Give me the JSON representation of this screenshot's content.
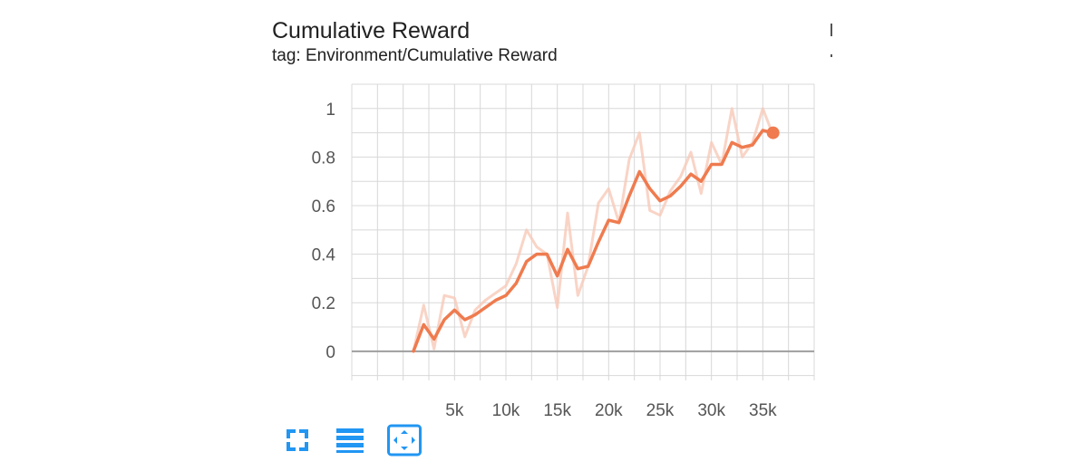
{
  "card": {
    "title": "Cumulative Reward",
    "subtitle": "tag: Environment/Cumulative Reward"
  },
  "toolbar": {
    "buttons": [
      {
        "icon": "expand-icon"
      },
      {
        "icon": "data-table-icon"
      },
      {
        "icon": "fit-domain-icon"
      }
    ]
  },
  "colors": {
    "smoothed": "#EF7B4F",
    "raw": "#F8C9B8",
    "grid": "#d8d8d8",
    "axis": "#9e9e9e",
    "accent": "#2196F3"
  },
  "chart_data": {
    "type": "line",
    "title": "Cumulative Reward",
    "xlabel": "",
    "ylabel": "",
    "xlim": [
      -5000,
      40000
    ],
    "ylim": [
      -0.12,
      1.1
    ],
    "xticks": [
      5000,
      10000,
      15000,
      20000,
      25000,
      30000,
      35000
    ],
    "xtick_labels": [
      "5k",
      "10k",
      "15k",
      "20k",
      "25k",
      "30k",
      "35k"
    ],
    "yticks": [
      0,
      0.2,
      0.4,
      0.6,
      0.8,
      1
    ],
    "ytick_labels": [
      "0",
      "0.2",
      "0.4",
      "0.6",
      "0.8",
      "1"
    ],
    "grid": true,
    "legend": "none",
    "series": [
      {
        "role": "raw",
        "x": [
          1000,
          2000,
          3000,
          4000,
          5000,
          6000,
          7000,
          8000,
          9000,
          10000,
          11000,
          12000,
          13000,
          14000,
          15000,
          16000,
          17000,
          18000,
          19000,
          20000,
          21000,
          22000,
          23000,
          24000,
          25000,
          26000,
          27000,
          28000,
          29000,
          30000,
          31000,
          32000,
          33000,
          34000,
          35000,
          36000
        ],
        "y": [
          0,
          0.19,
          0.01,
          0.23,
          0.22,
          0.06,
          0.17,
          0.21,
          0.24,
          0.27,
          0.36,
          0.5,
          0.43,
          0.4,
          0.18,
          0.57,
          0.23,
          0.35,
          0.61,
          0.67,
          0.53,
          0.79,
          0.9,
          0.58,
          0.56,
          0.66,
          0.72,
          0.82,
          0.65,
          0.86,
          0.77,
          1.0,
          0.8,
          0.86,
          1.0,
          0.89
        ]
      },
      {
        "role": "smoothed",
        "x": [
          1000,
          2000,
          3000,
          4000,
          5000,
          6000,
          7000,
          8000,
          9000,
          10000,
          11000,
          12000,
          13000,
          14000,
          15000,
          16000,
          17000,
          18000,
          19000,
          20000,
          21000,
          22000,
          23000,
          24000,
          25000,
          26000,
          27000,
          28000,
          29000,
          30000,
          31000,
          32000,
          33000,
          34000,
          35000,
          36000
        ],
        "y": [
          0,
          0.11,
          0.05,
          0.13,
          0.17,
          0.13,
          0.15,
          0.18,
          0.21,
          0.23,
          0.28,
          0.37,
          0.4,
          0.4,
          0.31,
          0.42,
          0.34,
          0.35,
          0.45,
          0.54,
          0.53,
          0.64,
          0.74,
          0.67,
          0.62,
          0.64,
          0.68,
          0.73,
          0.7,
          0.77,
          0.77,
          0.86,
          0.84,
          0.85,
          0.91,
          0.9
        ]
      }
    ]
  }
}
